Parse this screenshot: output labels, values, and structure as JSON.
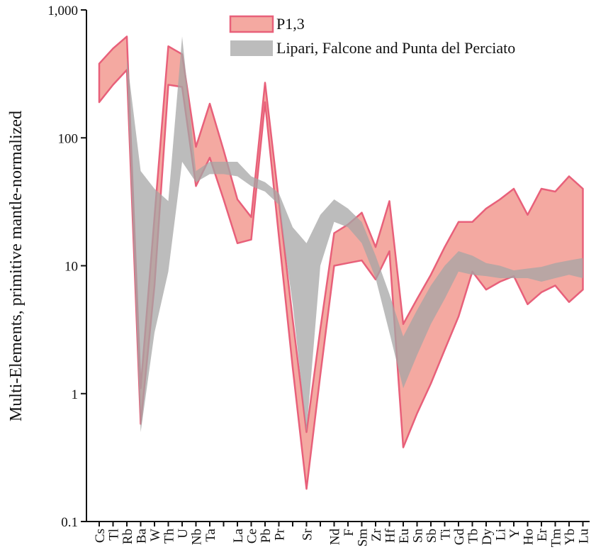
{
  "chart_data": {
    "type": "band",
    "y_label": "Multi-Elements, primitive mantle-normalized",
    "log_y": true,
    "ylim": [
      0.1,
      1000
    ],
    "yticks": [
      0.1,
      1,
      10,
      100,
      {
        "value": 1000,
        "label": "1,000"
      }
    ],
    "legend": "top",
    "categories": [
      "Cs",
      "Tl",
      "Rb",
      "Ba",
      "W",
      "Th",
      "U",
      "Nb",
      "Ta",
      null,
      "La",
      "Ce",
      "Pb",
      "Pr",
      null,
      "Sr",
      null,
      "Nd",
      "F",
      "Sm",
      "Zr",
      "Hf",
      "Eu",
      "Sn",
      "Sb",
      "Ti",
      "Gd",
      "Tb",
      "Dy",
      "Li",
      "Y",
      "Ho",
      "Er",
      "Tm",
      "Yb",
      "Lu"
    ],
    "series": [
      {
        "name": "P1,3",
        "color": "#f3a097",
        "edge_color": "#e8607a",
        "upper": [
          380,
          500,
          620,
          1.1,
          24,
          520,
          450,
          85,
          185,
          80,
          33,
          24,
          270,
          32,
          3.8,
          0.5,
          3.2,
          18,
          21,
          26,
          14,
          32,
          3.5,
          5.5,
          8.5,
          14,
          22,
          22,
          28,
          33,
          40,
          25,
          40,
          38,
          50,
          40
        ],
        "lower": [
          190,
          260,
          340,
          0.58,
          7,
          260,
          250,
          42,
          70,
          33,
          15,
          16,
          190,
          17,
          1.6,
          0.18,
          1.4,
          10,
          10.5,
          11,
          7.8,
          13,
          0.38,
          0.7,
          1.2,
          2.2,
          4,
          9,
          6.5,
          7.5,
          8.3,
          5,
          6.2,
          7,
          5.2,
          6.5
        ]
      },
      {
        "name": "Lipari, Falcone and Punta del Perciato",
        "color": "#a6a6a6",
        "edge_color": null,
        "upper": [
          null,
          null,
          420,
          55,
          40,
          32,
          620,
          55,
          65,
          65,
          65,
          50,
          45,
          37,
          20,
          15,
          25,
          33,
          28,
          22,
          12,
          6,
          2.8,
          4.5,
          7,
          10,
          13,
          12,
          10.5,
          10,
          9.2,
          9.5,
          9.8,
          10.5,
          11,
          11.5
        ],
        "lower": [
          null,
          null,
          330,
          0.5,
          3,
          9,
          65,
          45,
          52,
          52,
          50,
          42,
          38,
          30,
          5,
          0.5,
          10,
          22,
          20,
          15,
          8,
          3,
          1.1,
          2,
          3.5,
          5.5,
          9,
          8.5,
          8.3,
          8,
          8,
          8,
          7.5,
          8,
          8.5,
          8
        ]
      }
    ]
  }
}
